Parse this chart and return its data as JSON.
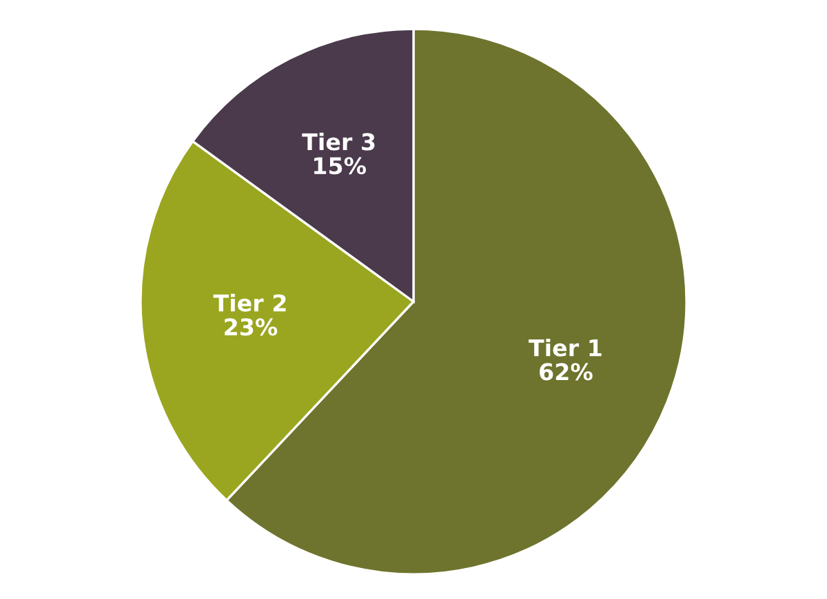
{
  "chart_data": {
    "type": "pie",
    "categories": [
      "Tier 1",
      "Tier 2",
      "Tier 3"
    ],
    "values": [
      62,
      23,
      15
    ],
    "colors": [
      "#6e742d",
      "#9aa61f",
      "#4a3a4c"
    ],
    "value_labels": [
      "62%",
      "23%",
      "15%"
    ]
  }
}
